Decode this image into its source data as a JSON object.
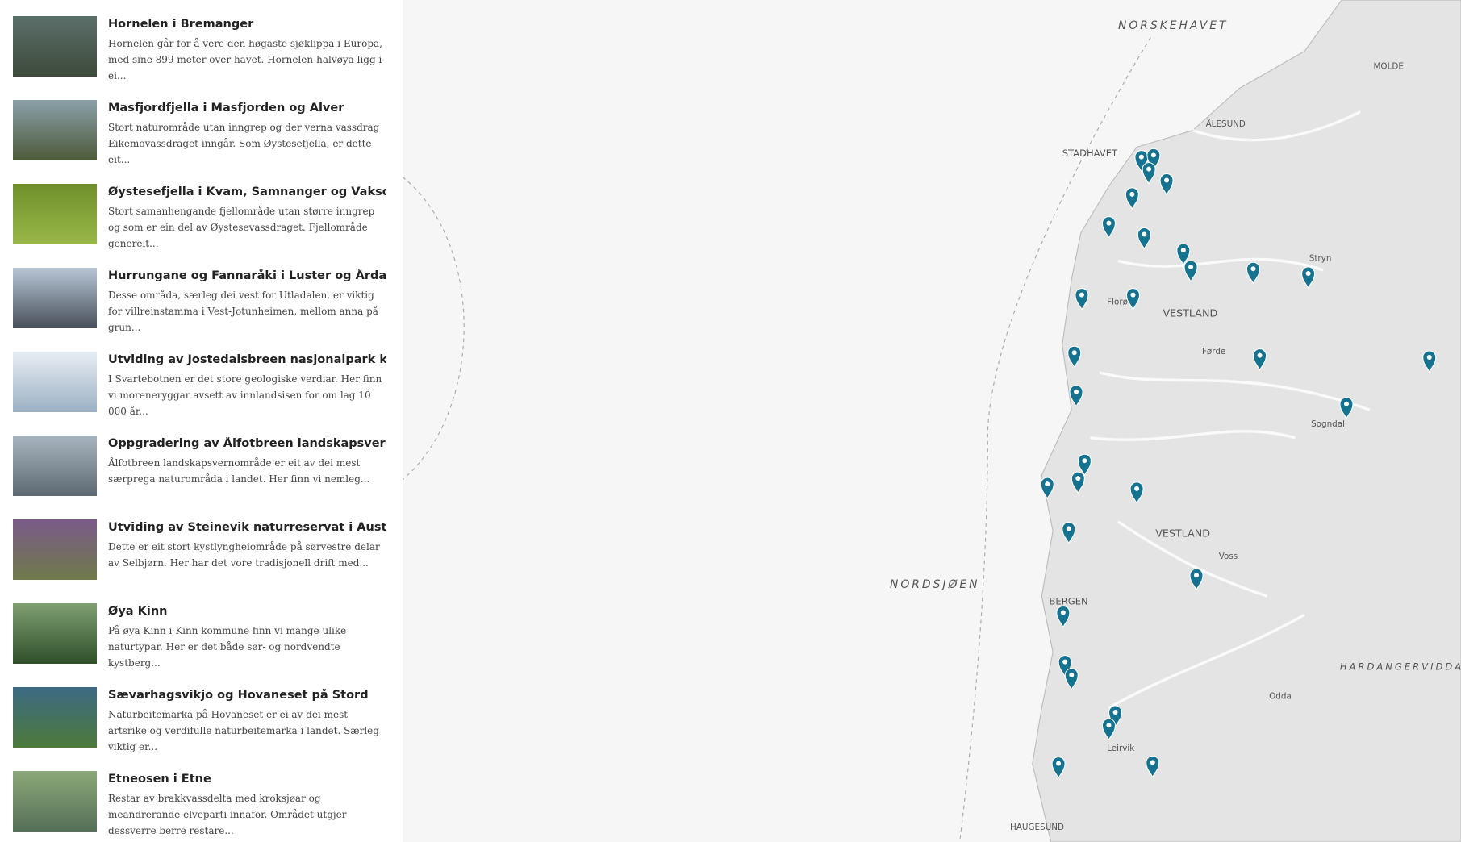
{
  "items": [
    {
      "title": "Hornelen i Bremanger",
      "description": "Hornelen går for å vere den høgaste sjøklippa i Europa, med sine 899 meter over havet. Hornelen-halvøya ligg i ei..."
    },
    {
      "title": "Masfjordfjella i Masfjorden og Alver",
      "description": "Stort naturområde utan inngrep og der verna vassdrag Eikemovassdraget inngår. Som Øystesefjella, er dette eit..."
    },
    {
      "title": "Øystesefjella i Kvam, Samnanger og Vaksdal",
      "description": "Stort samanhengande fjellområde utan større inngrep og som er ein del av Øystesevassdraget. Fjellområde generelt..."
    },
    {
      "title": "Hurrungane og Fannaråki i Luster og Årdal",
      "description": "Desse områda, særleg dei vest for Utladalen, er viktig for villreinstamma i Vest-Jotunheimen, mellom anna på grun..."
    },
    {
      "title": "Utviding av Jostedalsbreen nasjonalpark kring...",
      "description": "I Svartebotnen er det store geologiske verdiar. Her finn vi moreneryggar avsett av innlandsisen for om lag 10 000 år..."
    },
    {
      "title": "Oppgradering av Ålfotbreen landskapsverno...",
      "description": "Ålfotbreen landskapsvernområde er eit av dei mest særpregа naturområda i landet. Her finn vi nemleg..."
    },
    {
      "title": "Utviding av Steinevik naturreservat i Austevoll",
      "description": "Dette er eit stort kystlyngheiområde på sørvestre delar av Selbjørn. Her har det vore tradisjonell drift med..."
    },
    {
      "title": "Øya Kinn",
      "description": "På øya Kinn i Kinn kommune finn vi mange ulike naturtypar. Her er det både sør- og nordvendte kystberg..."
    },
    {
      "title": "Sævarhagsvikjo og Hovaneset på Stord",
      "description": "Naturbeitemarka på Hovaneset er ei av dei mest artsrike og verdifulle naturbeitemarka i landet. Særleg viktig er..."
    },
    {
      "title": "Etneosen i Etne",
      "description": "Restar av brakkvassdelta med kroksjøar og meandrerande elveparti innafor. Området utgjer dessverre berre restare..."
    }
  ],
  "map_labels": [
    "NORSKEHAVET",
    "NORDSJØEN",
    "STADHAVET",
    "VESTLAND",
    "VESTLAND",
    "BERGEN",
    "MOLDE",
    "ÅLESUND",
    "Florø",
    "Sogndal",
    "Voss",
    "Leirvik",
    "HAUGESUND",
    "Stryn",
    "Førde",
    "Odda",
    "HARDANGERVIDDA"
  ]
}
